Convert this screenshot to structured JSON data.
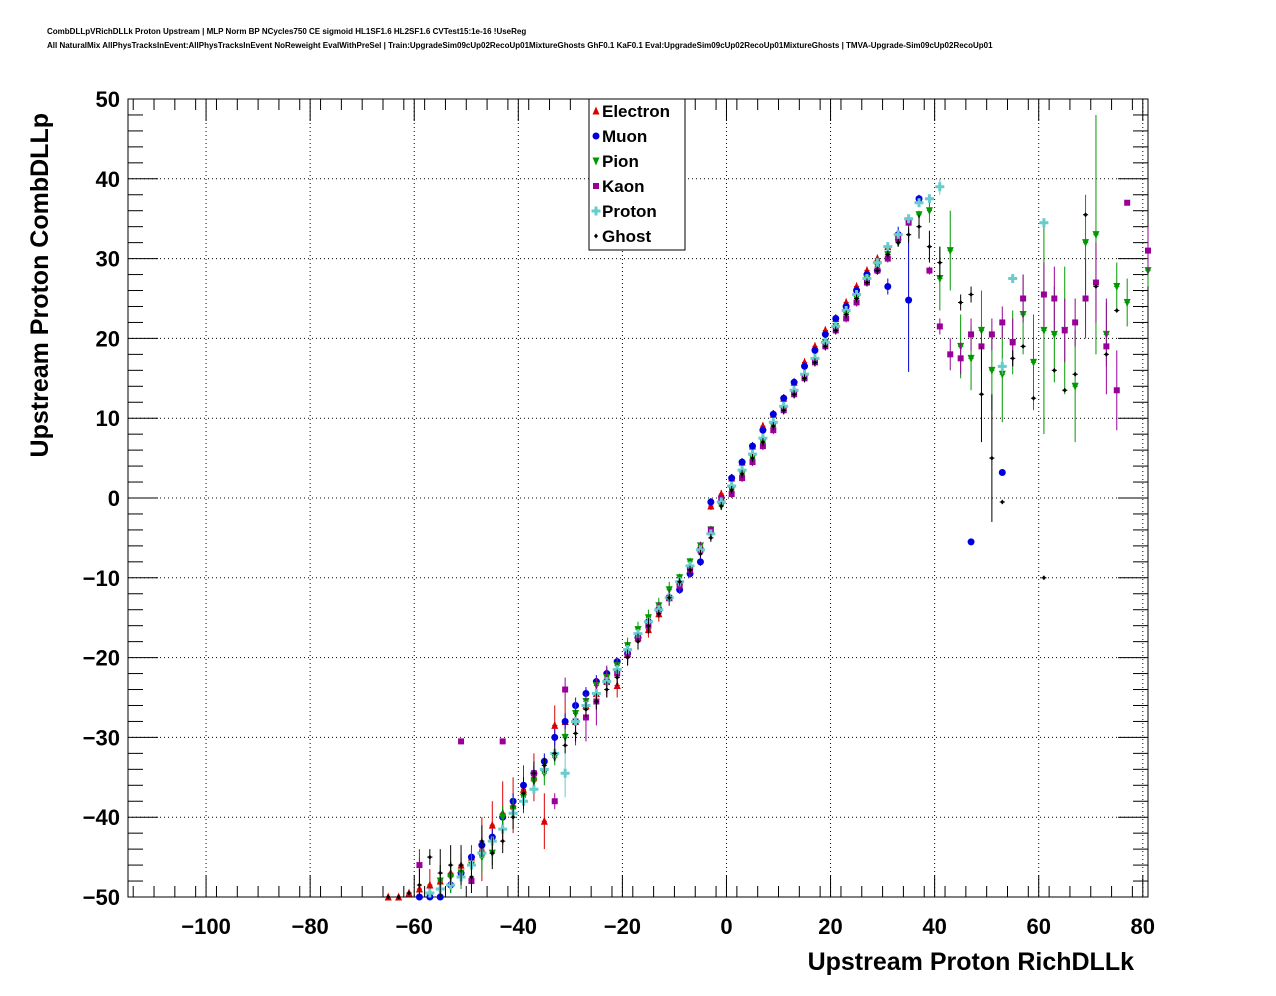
{
  "header": {
    "title_line1": "CombDLLpVRichDLLk Proton Upstream | MLP Norm BP NCycles750 CE sigmoid HL1SF1.6 HL2SF1.6 CVTest15:1e-16 !UseReg",
    "title_line2": "All NaturalMix AllPhysTracksInEvent:AllPhysTracksInEvent NoReweight EvalWithPreSel | Train:UpgradeSim09cUp02RecoUp01MixtureGhosts GhF0.1 KaF0.1 Eval:UpgradeSim09cUp02RecoUp01MixtureGhosts | TMVA-Upgrade-Sim09cUp02RecoUp01"
  },
  "chart_data": {
    "type": "scatter",
    "xlabel": "Upstream Proton RichDLLk",
    "ylabel": "Upstream Proton CombDLLp",
    "xlim": [
      -115,
      81
    ],
    "ylim": [
      -50,
      50
    ],
    "x_ticks": [
      "−100",
      "−80",
      "−60",
      "−40",
      "−20",
      "0",
      "20",
      "40",
      "60",
      "80"
    ],
    "y_ticks": [
      "−50",
      "−40",
      "−30",
      "−20",
      "−10",
      "0",
      "10",
      "20",
      "30",
      "40",
      "50"
    ],
    "grid": true,
    "legend_position": "top-center",
    "series": [
      {
        "name": "Electron",
        "color": "#dd0000",
        "marker": "triangle-up",
        "x": [
          -65,
          -63,
          -61,
          -59,
          -57,
          -55,
          -53,
          -51,
          -49,
          -47,
          -45,
          -43,
          -41,
          -39,
          -37,
          -35,
          -33,
          -31,
          -29,
          -27,
          -25,
          -23,
          -21,
          -19,
          -17,
          -15,
          -13,
          -11,
          -9,
          -7,
          -5,
          -3,
          -1,
          1,
          3,
          5,
          7,
          9,
          11,
          13,
          15,
          17,
          19,
          21,
          23,
          25,
          27,
          29,
          31
        ],
        "y": [
          -50,
          -50,
          -49.5,
          -49,
          -48.5,
          -48,
          -47,
          -46,
          -45,
          -44,
          -41,
          -39.5,
          -38.5,
          -36.5,
          -35,
          -40.5,
          -28.5,
          -28,
          -28,
          -26,
          -24.5,
          -23,
          -23.5,
          -19.5,
          -17.5,
          -16.5,
          -14.5,
          -12.5,
          -10.5,
          -8.5,
          -6,
          -1,
          0.5,
          2.5,
          4.5,
          6.5,
          9,
          10.5,
          12.5,
          14.5,
          17,
          19,
          21,
          22.5,
          24.5,
          26.5,
          28.5,
          30,
          31.5
        ],
        "err": [
          0,
          0,
          0,
          5,
          2,
          2,
          1.5,
          1.5,
          1.5,
          4,
          3,
          4,
          3.5,
          3,
          3,
          3.5,
          2.5,
          2.5,
          2,
          2,
          2,
          1.5,
          1.5,
          1,
          1,
          1,
          1,
          1,
          1,
          0.5,
          0.5,
          0.5,
          0.5,
          0.5,
          0.5,
          0.5,
          0.5,
          0.5,
          0.5,
          0.5,
          0.5,
          0.5,
          0.5,
          0.5,
          0.5,
          0.5,
          0.5,
          0.5,
          0.5
        ]
      },
      {
        "name": "Muon",
        "color": "#0000dd",
        "marker": "circle",
        "x": [
          -59,
          -57,
          -55,
          -53,
          -51,
          -49,
          -47,
          -45,
          -43,
          -41,
          -39,
          -37,
          -35,
          -33,
          -31,
          -29,
          -27,
          -25,
          -23,
          -21,
          -19,
          -17,
          -15,
          -13,
          -11,
          -9,
          -7,
          -5,
          -3,
          -1,
          1,
          3,
          5,
          7,
          9,
          11,
          13,
          15,
          17,
          19,
          21,
          23,
          25,
          27,
          29,
          31,
          33,
          35,
          37,
          47,
          53
        ],
        "y": [
          -50,
          -50,
          -50,
          -48.5,
          -47,
          -45,
          -43.5,
          -42.5,
          -40,
          -38,
          -36,
          -34.5,
          -33,
          -30,
          -28,
          -26,
          -24.5,
          -23,
          -22,
          -20.5,
          -19.5,
          -17.5,
          -15.5,
          -14,
          -12.5,
          -11.5,
          -9.5,
          -8,
          -0.5,
          -0.5,
          2.5,
          4.5,
          6.5,
          8.5,
          10.5,
          12.5,
          14.5,
          16.5,
          18.5,
          20.5,
          22.5,
          24,
          26,
          28,
          28.5,
          26.5,
          33,
          24.8,
          37.5,
          -5.5,
          3.2
        ],
        "err": [
          0,
          0,
          0,
          1,
          1,
          1,
          1,
          1,
          1,
          1,
          1,
          1,
          1,
          1,
          1,
          1,
          0.8,
          0.8,
          0.8,
          0.5,
          0.5,
          0.5,
          0.5,
          0.5,
          0.5,
          0.5,
          0.5,
          0.5,
          0.5,
          0.5,
          0.5,
          0.5,
          0.5,
          0.5,
          0.5,
          0.5,
          0.5,
          0.5,
          0.5,
          0.5,
          0.5,
          0.5,
          0.5,
          0.5,
          0.5,
          1,
          1,
          9,
          0.5,
          0,
          0
        ]
      },
      {
        "name": "Pion",
        "color": "#009900",
        "marker": "triangle-down",
        "x": [
          -55,
          -53,
          -51,
          -49,
          -47,
          -45,
          -43,
          -41,
          -39,
          -37,
          -35,
          -33,
          -31,
          -29,
          -27,
          -25,
          -23,
          -21,
          -19,
          -17,
          -15,
          -13,
          -11,
          -9,
          -7,
          -5,
          -3,
          -1,
          1,
          3,
          5,
          7,
          9,
          11,
          13,
          15,
          17,
          19,
          21,
          23,
          25,
          27,
          29,
          31,
          33,
          35,
          37,
          39,
          41,
          43,
          45,
          47,
          49,
          51,
          53,
          55,
          57,
          59,
          61,
          63,
          65,
          67,
          69,
          71,
          73,
          75,
          77,
          81
        ],
        "y": [
          -48,
          -47.5,
          -47,
          -46,
          -45,
          -44.5,
          -40,
          -39,
          -37.5,
          -35.5,
          -34.5,
          -32.5,
          -30,
          -27,
          -25.5,
          -23.5,
          -22.5,
          -21,
          -18.5,
          -16.5,
          -15,
          -13.5,
          -11.5,
          -10,
          -8,
          -6,
          -4,
          -1,
          1,
          3,
          5,
          7,
          9,
          11,
          13,
          15,
          17,
          19.5,
          21.5,
          23,
          25,
          27.5,
          29,
          30.5,
          32,
          34.5,
          35.5,
          36,
          27.5,
          31,
          19,
          17.5,
          21,
          16,
          15.5,
          19.5,
          23,
          17,
          21,
          20.5,
          21,
          14,
          32,
          33,
          20.5,
          26.5,
          24.5,
          28.5
        ],
        "err": [
          2,
          2,
          2,
          2,
          2,
          1.5,
          1.5,
          1.5,
          1.5,
          1.5,
          1.5,
          1,
          1,
          1,
          1,
          1,
          1,
          1,
          1,
          1,
          1,
          1,
          1,
          0.5,
          0.5,
          0.5,
          0.5,
          0.5,
          0.5,
          0.5,
          0.5,
          0.5,
          0.5,
          0.5,
          0.5,
          0.5,
          0.5,
          0.5,
          0.5,
          0.5,
          0.5,
          0.5,
          0.5,
          0.5,
          0.5,
          0.5,
          0.5,
          1.5,
          4,
          5,
          4,
          4,
          5,
          5,
          6,
          4,
          5,
          6,
          13,
          6,
          8,
          7,
          6,
          15,
          4,
          3,
          3,
          2
        ]
      },
      {
        "name": "Kaon",
        "color": "#990099",
        "marker": "square",
        "x": [
          -59,
          -51,
          -49,
          -43,
          -37,
          -33,
          -31,
          -29,
          -27,
          -25,
          -23,
          -21,
          -19,
          -17,
          -15,
          -13,
          -11,
          -9,
          -7,
          -5,
          -3,
          -1,
          1,
          3,
          5,
          7,
          9,
          11,
          13,
          15,
          17,
          19,
          21,
          23,
          25,
          27,
          29,
          31,
          33,
          35,
          39,
          41,
          43,
          45,
          47,
          49,
          51,
          53,
          55,
          57,
          61,
          63,
          65,
          67,
          69,
          71,
          73,
          75,
          77,
          81
        ],
        "y": [
          -46,
          -30.5,
          -48,
          -30.5,
          -34.5,
          -38,
          -24,
          -28,
          -27.5,
          -25.5,
          -23,
          -22,
          -19.5,
          -17.5,
          -16,
          -14,
          -12.5,
          -11,
          -9,
          -6.5,
          -4,
          0,
          0.5,
          2.5,
          4.5,
          6.5,
          8.5,
          11,
          13,
          15,
          17,
          19,
          21,
          22.5,
          24.5,
          27,
          28.5,
          30,
          32.5,
          34.5,
          28.5,
          21.5,
          18,
          17.5,
          20.5,
          19,
          20.5,
          22,
          19.5,
          25,
          25.5,
          25,
          21,
          22,
          25,
          27,
          19,
          13.5,
          37,
          31
        ],
        "err": [
          1,
          0,
          0,
          0,
          1,
          1,
          1.5,
          3,
          3,
          3,
          2,
          2,
          1.5,
          1,
          1,
          1,
          1,
          1,
          1,
          1,
          0.5,
          0.5,
          0.5,
          0.5,
          0.5,
          0.5,
          0.5,
          0.5,
          0.5,
          0.5,
          0.5,
          0.5,
          0.5,
          0.5,
          0.5,
          0.5,
          0.5,
          0.5,
          0.5,
          0.5,
          0.5,
          1,
          2,
          2,
          2,
          2,
          2,
          2,
          3,
          3,
          4,
          4,
          4,
          3,
          5,
          5,
          6,
          5,
          0,
          3
        ]
      },
      {
        "name": "Proton",
        "color": "#66cccc",
        "marker": "cross",
        "x": [
          -57,
          -55,
          -53,
          -51,
          -49,
          -47,
          -45,
          -43,
          -41,
          -39,
          -37,
          -35,
          -33,
          -31,
          -29,
          -27,
          -25,
          -23,
          -21,
          -19,
          -17,
          -15,
          -13,
          -11,
          -9,
          -7,
          -5,
          -3,
          -1,
          1,
          3,
          5,
          7,
          9,
          11,
          13,
          15,
          17,
          19,
          21,
          23,
          25,
          27,
          29,
          31,
          33,
          35,
          37,
          39,
          41,
          53,
          55,
          61
        ],
        "y": [
          -49.5,
          -49,
          -48.5,
          -47.5,
          -46,
          -44.5,
          -43,
          -41.5,
          -39.5,
          -38,
          -36.5,
          -34,
          -32,
          -34.5,
          -28,
          -26,
          -24.5,
          -23,
          -21.5,
          -19,
          -17,
          -15.5,
          -14,
          -12.5,
          -10.5,
          -8.5,
          -6.5,
          -4.5,
          -0.5,
          1.5,
          3.5,
          5.5,
          7.5,
          9.5,
          11.5,
          13.5,
          15.5,
          17.5,
          19.5,
          21.5,
          23.5,
          25.5,
          27.5,
          29.5,
          31.5,
          33,
          35,
          37,
          37.5,
          39,
          16.5,
          27.5,
          34.5
        ],
        "err": [
          0.5,
          0.5,
          0.5,
          0.5,
          0.5,
          0.5,
          0.5,
          0.5,
          0.5,
          0.5,
          0.5,
          0.5,
          0.5,
          3,
          0.5,
          0.5,
          0.5,
          0.5,
          0.5,
          0.5,
          0.5,
          0.5,
          0.5,
          0.5,
          0.5,
          0.5,
          0.5,
          0.5,
          0.5,
          0.5,
          0.5,
          0.5,
          0.5,
          0.5,
          0.5,
          0.5,
          0.5,
          0.5,
          0.5,
          0.5,
          0.5,
          0.5,
          0.5,
          0.5,
          0.5,
          0.5,
          0.5,
          0.5,
          0.5,
          1,
          1,
          0,
          0
        ]
      },
      {
        "name": "Ghost",
        "color": "#000000",
        "marker": "diamond",
        "x": [
          -65,
          -63,
          -61,
          -59,
          -57,
          -55,
          -53,
          -51,
          -49,
          -47,
          -45,
          -43,
          -41,
          -39,
          -37,
          -35,
          -33,
          -31,
          -29,
          -27,
          -25,
          -23,
          -21,
          -19,
          -17,
          -15,
          -13,
          -11,
          -9,
          -7,
          -5,
          -3,
          -1,
          1,
          3,
          5,
          7,
          9,
          11,
          13,
          15,
          17,
          19,
          21,
          23,
          25,
          27,
          29,
          31,
          33,
          35,
          37,
          39,
          41,
          45,
          47,
          49,
          51,
          53,
          55,
          57,
          59,
          61,
          63,
          65,
          67,
          69,
          71,
          73,
          75
        ],
        "y": [
          -50,
          -50,
          -49.5,
          -48.5,
          -45,
          -47,
          -46,
          -46,
          -47.5,
          -43,
          -44.5,
          -43,
          -40,
          -37,
          -34.5,
          -33.5,
          -32,
          -31,
          -29.5,
          -26.5,
          -25.5,
          -24,
          -22.5,
          -20,
          -18,
          -16,
          -14.5,
          -12.5,
          -10.5,
          -9,
          -7,
          -5,
          -1,
          1,
          3,
          5,
          7,
          9,
          11,
          13,
          15,
          17,
          19,
          21,
          23,
          25,
          27,
          28.5,
          30.5,
          32,
          33,
          34,
          31.5,
          29.5,
          24.5,
          25.5,
          13,
          5,
          -0.5,
          17.5,
          19,
          12.5,
          -10,
          16,
          13.5,
          15.5,
          35.5,
          26.5,
          18,
          23.5
        ],
        "err": [
          0,
          0,
          0,
          2,
          1,
          3,
          2.5,
          2.5,
          2,
          2,
          2,
          1.5,
          1.5,
          2,
          1.5,
          1,
          1,
          1,
          1,
          1,
          1,
          1,
          1,
          1,
          1,
          1,
          0.5,
          0.5,
          0.5,
          0.5,
          0.5,
          0.5,
          0.5,
          0.5,
          0.5,
          0.5,
          0.5,
          0.5,
          0.5,
          0.5,
          0.5,
          0.5,
          0.5,
          0.5,
          0.5,
          0.5,
          0.5,
          0.5,
          0.5,
          0.5,
          1,
          1.5,
          2,
          2,
          1,
          1,
          6,
          8,
          0,
          1,
          0,
          0,
          0,
          0,
          0,
          0,
          0,
          0,
          0,
          0
        ]
      }
    ]
  }
}
